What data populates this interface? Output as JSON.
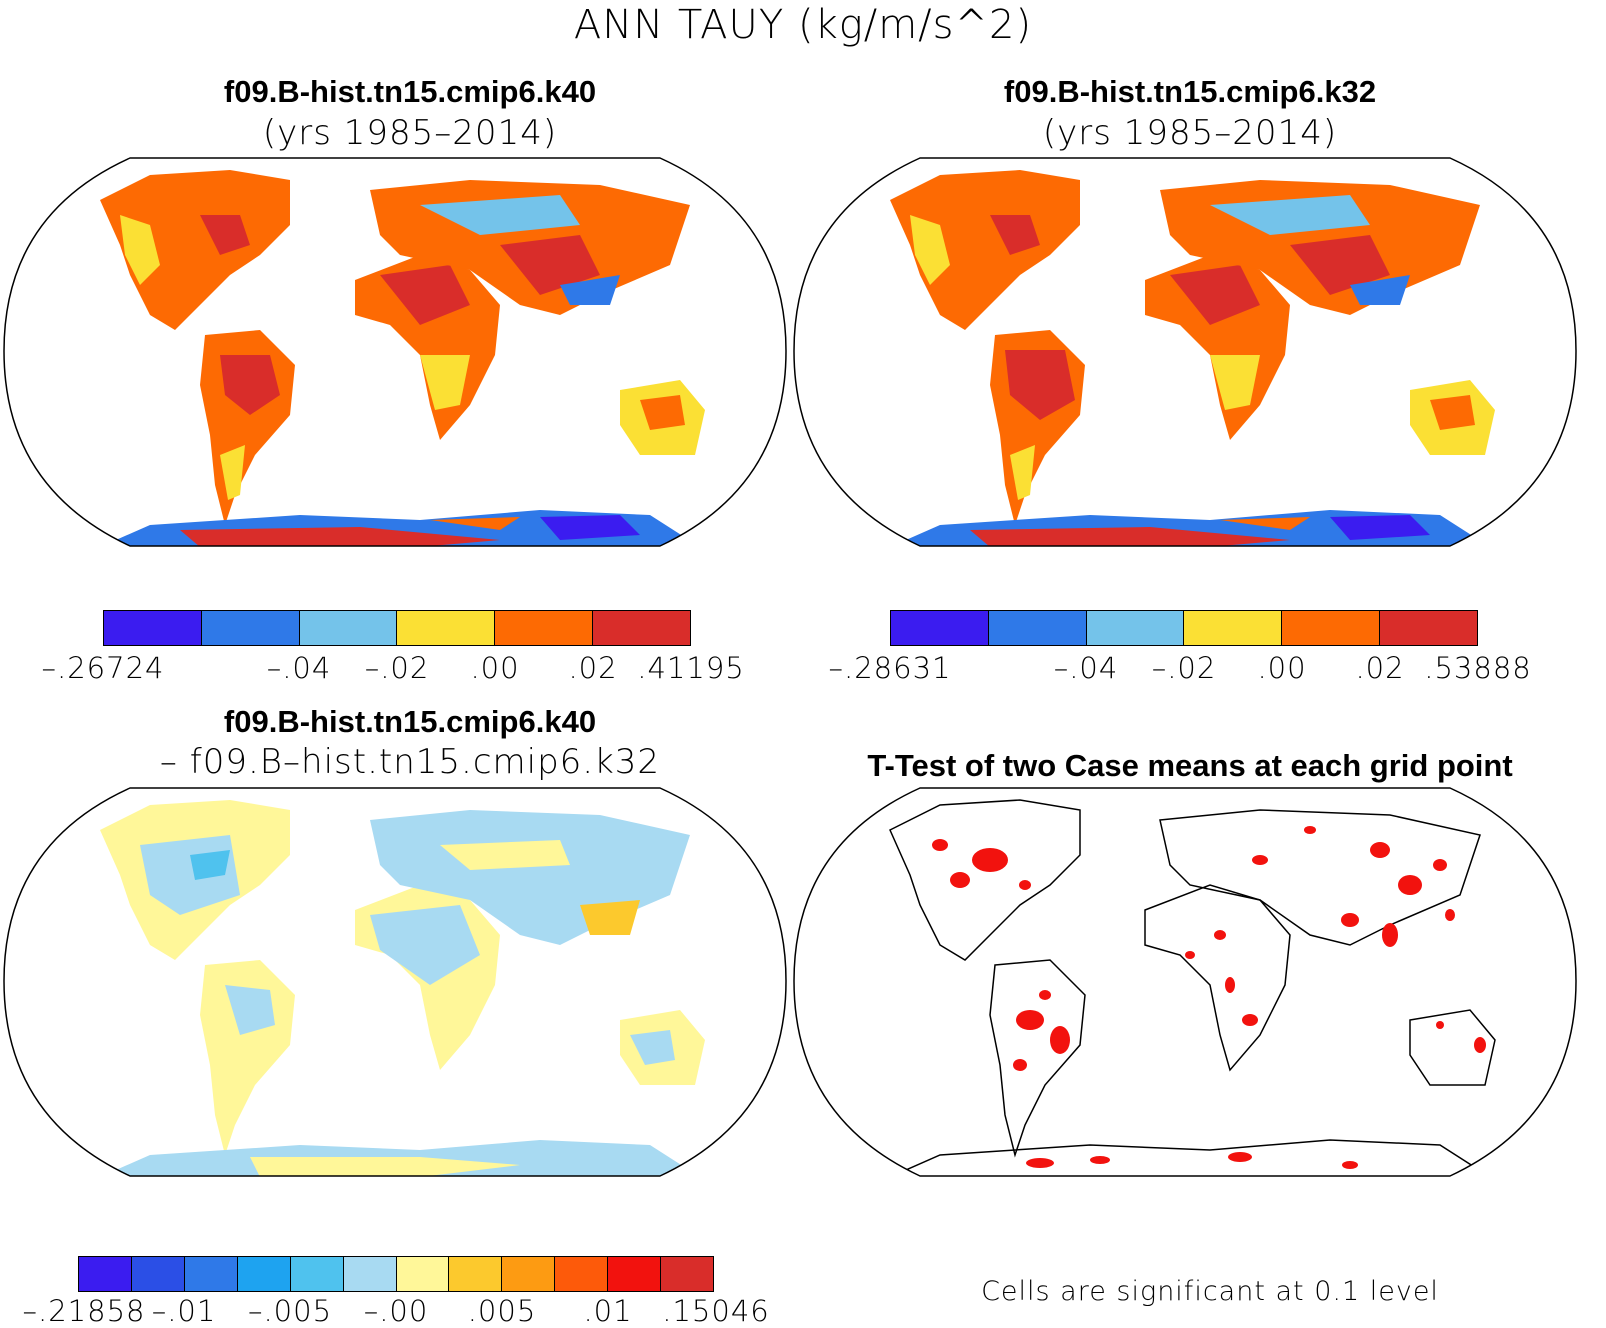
{
  "title": "ANN TAUY (kg/m/s^2)",
  "panels": {
    "tl": {
      "case": "f09.B-hist.tn15.cmip6.k40",
      "sub": "(yrs 1985–2014)"
    },
    "tr": {
      "case": "f09.B-hist.tn15.cmip6.k32",
      "sub": "(yrs 1985–2014)"
    },
    "bl": {
      "case": "f09.B-hist.tn15.cmip6.k40",
      "sub": "– f09.B–hist.tn15.cmip6.k32"
    },
    "br": {
      "case": "T-Test of two Case means at each grid point",
      "note": "Cells are significant at 0.1 level"
    }
  },
  "colorbars": {
    "tl": {
      "colors": [
        "#3b1cf0",
        "#2f79e8",
        "#74c3ea",
        "#fbe034",
        "#fd6a03",
        "#d92d2a"
      ],
      "labels": [
        "–.26724",
        "–.04",
        "–.02",
        ".00",
        ".02",
        ".41195"
      ]
    },
    "tr": {
      "colors": [
        "#3b1cf0",
        "#2f79e8",
        "#74c3ea",
        "#fbe034",
        "#fd6a03",
        "#d92d2a"
      ],
      "labels": [
        "–.28631",
        "–.04",
        "–.02",
        ".00",
        ".02",
        ".53888"
      ]
    },
    "bl": {
      "colors": [
        "#3b1cf0",
        "#2b4fe6",
        "#2f79e8",
        "#1ea3f0",
        "#4fc2ee",
        "#a8daf2",
        "#fff799",
        "#fcc92d",
        "#fd9b12",
        "#fd5a0a",
        "#f2120e",
        "#d92d2a"
      ],
      "labels": [
        "–.21858",
        "–.01",
        "–.005",
        "–.00",
        ".005",
        ".01",
        ".15046"
      ]
    }
  }
}
